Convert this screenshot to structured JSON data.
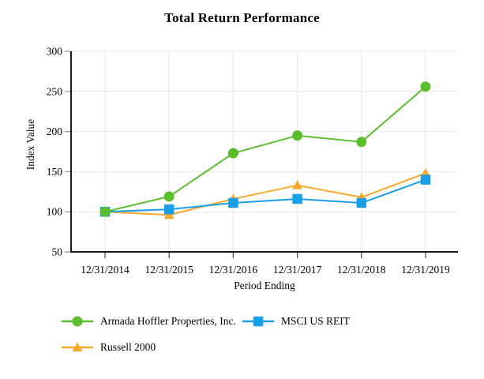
{
  "chart_data": {
    "type": "line",
    "title": "Total Return Performance",
    "xlabel": "Period Ending",
    "ylabel": "Index Value",
    "categories": [
      "12/31/2014",
      "12/31/2015",
      "12/31/2016",
      "12/31/2017",
      "12/31/2018",
      "12/31/2019"
    ],
    "series": [
      {
        "name": "Armada Hoffler Properties, Inc.",
        "marker": "circle",
        "color": "#5BBE2D",
        "values": [
          100,
          119,
          173,
          195,
          187,
          256
        ]
      },
      {
        "name": "MSCI US REIT",
        "marker": "square",
        "color": "#199FE8",
        "values": [
          100,
          103,
          111,
          116,
          111,
          140
        ]
      },
      {
        "name": "Russell 2000",
        "marker": "triangle",
        "color": "#F9A82B",
        "values": [
          100,
          96,
          116,
          133,
          118,
          148
        ]
      }
    ],
    "ylim": [
      50,
      300
    ],
    "yticks": [
      50,
      100,
      150,
      200,
      250,
      300
    ],
    "grid": true,
    "legend_position": "bottom-left",
    "colors": {
      "grid": "#E7E7E7",
      "axis": "#1A1A1A",
      "y_tick": "#9A9A9A",
      "x_tick": "#555555",
      "text": "#000000",
      "background": "#FFFFFF"
    }
  }
}
